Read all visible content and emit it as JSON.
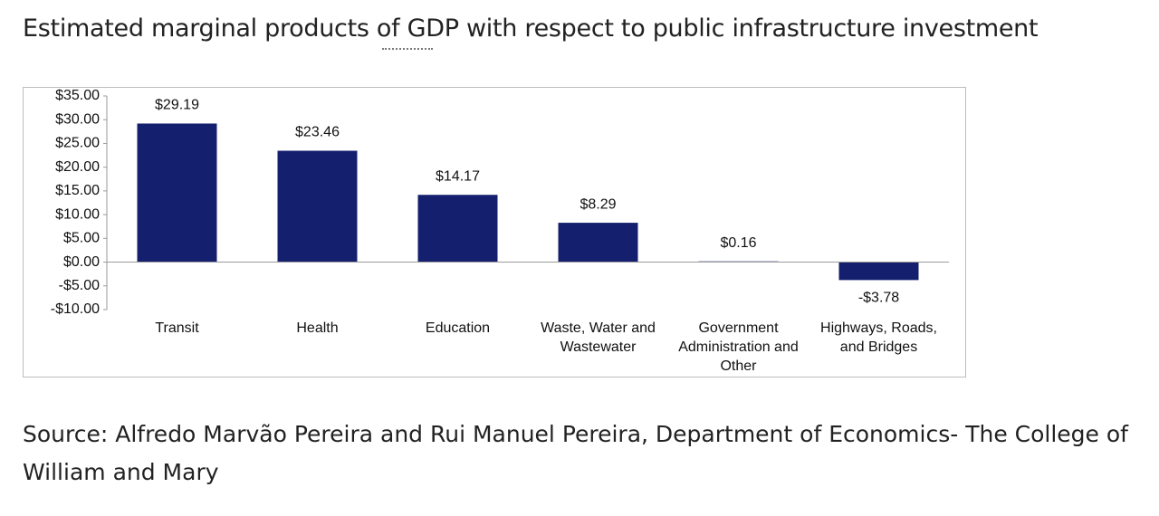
{
  "chart_data": {
    "type": "bar",
    "title": "Estimated marginal products of GDP with respect to public infrastructure investment",
    "categories": [
      "Transit",
      "Health",
      "Education",
      "Waste, Water and Wastewater",
      "Government Administration and Other",
      "Highways, Roads, and Bridges"
    ],
    "values": [
      29.19,
      23.46,
      14.17,
      8.29,
      0.16,
      -3.78
    ],
    "value_labels": [
      "$29.19",
      "$23.46",
      "$14.17",
      "$8.29",
      "$0.16",
      "-$3.78"
    ],
    "color": "#14206e",
    "ylim": [
      -10,
      35
    ],
    "yticks": [
      {
        "value": -10,
        "label": "-$10.00"
      },
      {
        "value": -5,
        "label": "-$5.00"
      },
      {
        "value": 0,
        "label": "$0.00"
      },
      {
        "value": 5,
        "label": "$5.00"
      },
      {
        "value": 10,
        "label": "$10.00"
      },
      {
        "value": 15,
        "label": "$15.00"
      },
      {
        "value": 20,
        "label": "$20.00"
      },
      {
        "value": 25,
        "label": "$25.00"
      },
      {
        "value": 30,
        "label": "$30.00"
      },
      {
        "value": 35,
        "label": "$35.00"
      }
    ],
    "source": "Source: Alfredo Marvão Pereira and Rui Manuel Pereira, Department of Economics- The College of William and Mary"
  }
}
